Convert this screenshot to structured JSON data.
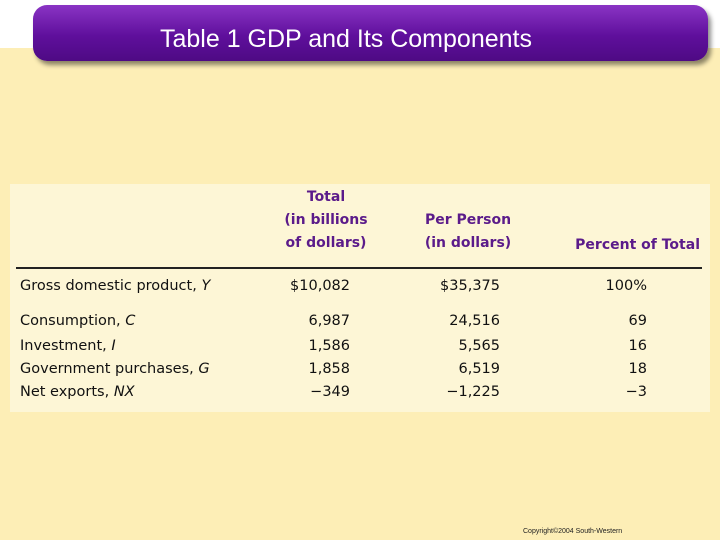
{
  "title": "Table 1 GDP and Its Components",
  "table": {
    "headers": {
      "total": [
        "Total",
        "(in billions",
        "of dollars)"
      ],
      "per_person": [
        "Per Person",
        "(in dollars)"
      ],
      "percent": "Percent of Total"
    },
    "rows": [
      {
        "label": "Gross domestic product, ",
        "symbol": "Y",
        "total": "$10,082",
        "per_person": "$35,375",
        "percent": "100%"
      },
      {
        "label": "Consumption, ",
        "symbol": "C",
        "total": "6,987",
        "per_person": "24,516",
        "percent": "69"
      },
      {
        "label": "Investment, ",
        "symbol": "I",
        "total": "1,586",
        "per_person": "5,565",
        "percent": "16"
      },
      {
        "label": "Government purchases, ",
        "symbol": "G",
        "total": "1,858",
        "per_person": "6,519",
        "percent": "18"
      },
      {
        "label": "Net exports, ",
        "symbol": "NX",
        "total": "−349",
        "per_person": "−1,225",
        "percent": "−3"
      }
    ]
  },
  "footer": {
    "copyright": "Copyright©2004  South-Western"
  },
  "colors": {
    "title_bar": "#5f0f9c",
    "header_text": "#5b1b8a",
    "background": "#fdeeb6",
    "table_bg": "#fdf6d6"
  }
}
